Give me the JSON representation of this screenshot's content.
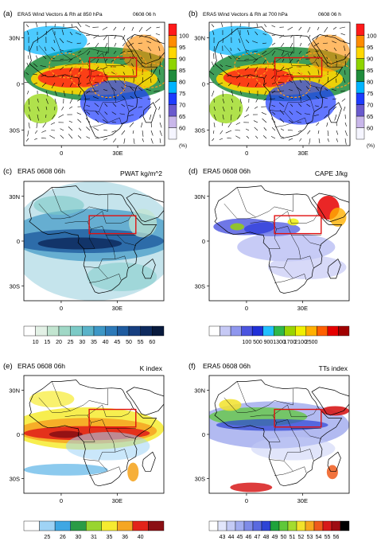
{
  "panels": [
    {
      "tag": "(a)",
      "title": "ERA5  Wind Vectors &  Rh at 850 hPa",
      "time": "0608   06 h",
      "right_label": "",
      "bg": "wind",
      "colorbar": {
        "orientation": "vertical",
        "levels": [
          "60",
          "65",
          "70",
          "75",
          "80",
          "85",
          "90",
          "95",
          "100"
        ],
        "unit": "(%)",
        "colors": [
          "#f5f5ff",
          "#c9b7ea",
          "#6a5acd",
          "#1e3cff",
          "#00b4ff",
          "#1f8c3c",
          "#8fd400",
          "#ffd700",
          "#ff8c00",
          "#ff1a1a"
        ]
      },
      "lat_ticks": [
        "30N",
        "0",
        "30S"
      ],
      "lon_ticks": [
        "0",
        "30E"
      ]
    },
    {
      "tag": "(b)",
      "title": "ERA5  Wind Vectors &  Rh at 700 hPa",
      "time": "0608   06 h",
      "right_label": "",
      "bg": "wind",
      "colorbar": {
        "orientation": "vertical",
        "levels": [
          "60",
          "65",
          "70",
          "75",
          "80",
          "85",
          "90",
          "95",
          "100"
        ],
        "unit": "(%)",
        "colors": [
          "#f5f5ff",
          "#c9b7ea",
          "#6a5acd",
          "#1e3cff",
          "#00b4ff",
          "#1f8c3c",
          "#8fd400",
          "#ffd700",
          "#ff8c00",
          "#ff1a1a"
        ]
      },
      "lat_ticks": [
        "30N",
        "0",
        "30S"
      ],
      "lon_ticks": [
        "0",
        "30E"
      ]
    },
    {
      "tag": "(c)",
      "title": "ERA5 0608 06h",
      "time": "",
      "right_label": "PWAT kg/m^2",
      "bg": "pwat",
      "colorbar": {
        "orientation": "horizontal",
        "levels": [
          "10",
          "15",
          "20",
          "25",
          "30",
          "35",
          "40",
          "45",
          "50",
          "55",
          "60"
        ],
        "unit": "",
        "colors": [
          "#ffffff",
          "#e3f1e6",
          "#c2e5d0",
          "#a0d8c6",
          "#7ccac6",
          "#5ab3c9",
          "#3d97c6",
          "#2d79b8",
          "#1f5b9f",
          "#173f80",
          "#0e2a5e",
          "#081a3d"
        ]
      },
      "lat_ticks": [
        "30N",
        "0",
        "30S"
      ],
      "lon_ticks": [
        "0",
        "30E"
      ]
    },
    {
      "tag": "(d)",
      "title": "ERA5 0608 06h",
      "time": "",
      "right_label": "CAPE J/kg",
      "bg": "cape",
      "colorbar": {
        "orientation": "horizontal",
        "levels": [
          "100",
          "500",
          "900",
          "1300",
          "1700",
          "2100",
          "2500"
        ],
        "unit": "",
        "colors": [
          "#ffffff",
          "#c6c9f5",
          "#8f97ee",
          "#4b55e0",
          "#2030d8",
          "#22c0ff",
          "#2fb84a",
          "#9ad400",
          "#f0f000",
          "#ffb000",
          "#ff6000",
          "#e60000",
          "#a00000"
        ]
      },
      "lat_ticks": [
        "30N",
        "0",
        "30S"
      ],
      "lon_ticks": [
        "0",
        "30E"
      ]
    },
    {
      "tag": "(e)",
      "title": "ERA5 0608 06h",
      "time": "",
      "right_label": "K index",
      "bg": "kindex",
      "colorbar": {
        "orientation": "horizontal",
        "levels": [
          "25",
          "26",
          "30",
          "31",
          "35",
          "36",
          "40"
        ],
        "unit": "",
        "colors": [
          "#ffffff",
          "#9fd3f5",
          "#3fa7e3",
          "#2a9b45",
          "#99d52f",
          "#f6eb30",
          "#f5a623",
          "#e2231a",
          "#8b0f14"
        ]
      },
      "lat_ticks": [
        "30N",
        "0",
        "30S"
      ],
      "lon_ticks": [
        "0",
        "30E"
      ]
    },
    {
      "tag": "(f)",
      "title": "ERA5 0608 06h",
      "time": "",
      "right_label": "TTs index",
      "bg": "tts",
      "colorbar": {
        "orientation": "horizontal",
        "levels": [
          "43",
          "44",
          "45",
          "46",
          "47",
          "48",
          "49",
          "50",
          "51",
          "52",
          "53",
          "54",
          "55",
          "56"
        ],
        "unit": "",
        "colors": [
          "#ffffff",
          "#e2e6fb",
          "#c4cbf5",
          "#a3aef0",
          "#7f8ce8",
          "#5a6ae0",
          "#2d44d6",
          "#1fa23c",
          "#5fc83a",
          "#a4dc2e",
          "#f2e22a",
          "#f7a81e",
          "#ef5a1c",
          "#d71a1a",
          "#9e0c12",
          "#000000"
        ]
      },
      "lat_ticks": [
        "30N",
        "0",
        "30S"
      ],
      "lon_ticks": [
        "0",
        "30E"
      ]
    }
  ],
  "chart_data": {
    "type": "heatmap",
    "region_box_color": "#e01010",
    "region_box": {
      "lon": [
        15,
        40
      ],
      "lat": [
        5,
        17
      ]
    },
    "map_extent": {
      "lon": [
        -20,
        55
      ],
      "lat": [
        -40,
        40
      ]
    },
    "lat_tick_values": [
      30,
      0,
      -30
    ],
    "lon_tick_values": [
      0,
      30
    ]
  }
}
